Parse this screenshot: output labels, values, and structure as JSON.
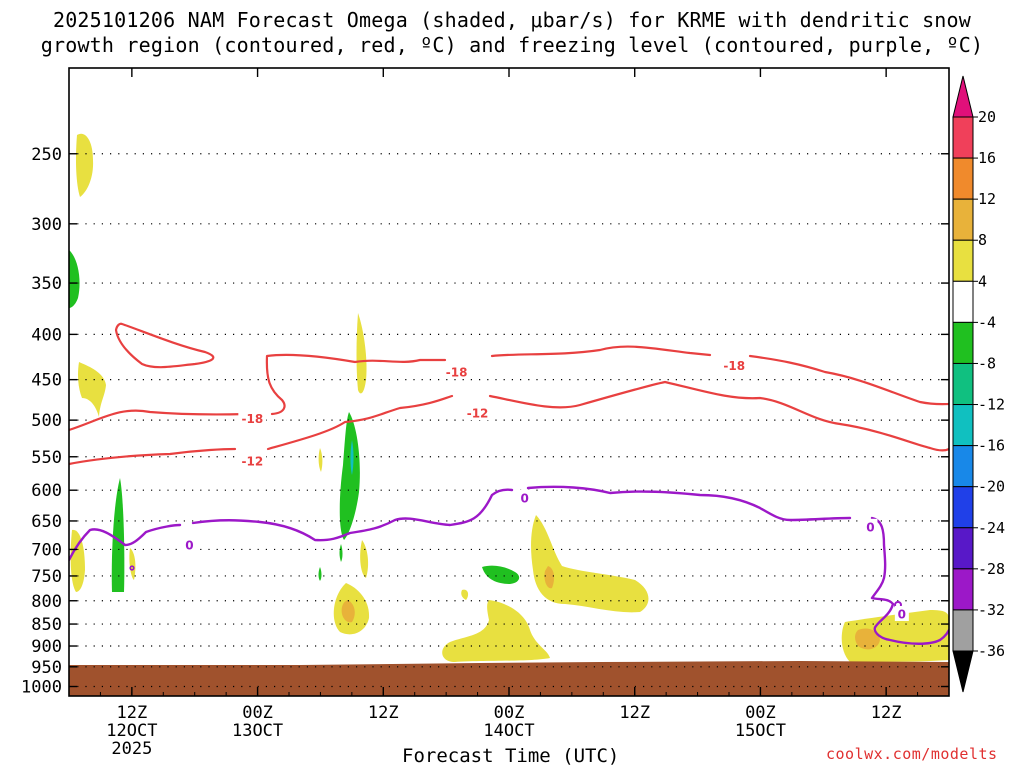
{
  "chart_data": {
    "type": "heatmap",
    "title_line1": "2025101206 NAM Forecast Omega (shaded, μbar/s) for KRME with dendritic snow",
    "title_line2": "growth region (contoured, red, ºC) and freezing level (contoured, purple, ºC)",
    "xlabel": "Forecast Time (UTC)",
    "credit": "coolwx.com/modelts",
    "x_range_hours": [
      0,
      84
    ],
    "y_range_hPa": [
      200,
      1025
    ],
    "pressure_ticks": [
      250,
      300,
      350,
      400,
      450,
      500,
      550,
      600,
      650,
      700,
      750,
      800,
      850,
      900,
      950,
      1000
    ],
    "time_ticks": [
      {
        "hour": 6,
        "hr": "12Z",
        "day": "12OCT",
        "year": "2025"
      },
      {
        "hour": 18,
        "hr": "00Z",
        "day": "13OCT",
        "year": ""
      },
      {
        "hour": 30,
        "hr": "12Z",
        "day": "",
        "year": ""
      },
      {
        "hour": 42,
        "hr": "00Z",
        "day": "14OCT",
        "year": ""
      },
      {
        "hour": 54,
        "hr": "12Z",
        "day": "",
        "year": ""
      },
      {
        "hour": 66,
        "hr": "00Z",
        "day": "15OCT",
        "year": ""
      },
      {
        "hour": 78,
        "hr": "12Z",
        "day": "",
        "year": ""
      }
    ],
    "colorbar": {
      "labels": [
        "20",
        "16",
        "12",
        "8",
        "4",
        "-4",
        "-8",
        "-12",
        "-16",
        "-20",
        "-24",
        "-28",
        "-32",
        "-36"
      ],
      "colors": [
        "#f0405a",
        "#f08a2c",
        "#e8b23a",
        "#e8e040",
        "#ffffff",
        "#20c020",
        "#10c080",
        "#10c0c0",
        "#1888e8",
        "#2040e8",
        "#5818c8",
        "#9c18c8",
        "#a0a0a0"
      ],
      "top_arrow_color": "#e0107a",
      "bottom_arrow_color": "#000000"
    },
    "contours": {
      "dgz_red": [
        {
          "level": "-18",
          "label_positions": [
            [
              17.5,
              498
            ],
            [
              37,
              441
            ],
            [
              63.5,
              434
            ]
          ]
        },
        {
          "level": "-12",
          "label_positions": [
            [
              17.5,
              556
            ],
            [
              39,
              491
            ]
          ]
        }
      ],
      "freezing_purple": [
        {
          "level": "0",
          "label_positions": [
            [
              11.5,
              692
            ],
            [
              43.5,
              612
            ],
            [
              76.5,
              660
            ],
            [
              79.5,
              828
            ]
          ]
        }
      ]
    },
    "ground_color": "#a0522d"
  }
}
